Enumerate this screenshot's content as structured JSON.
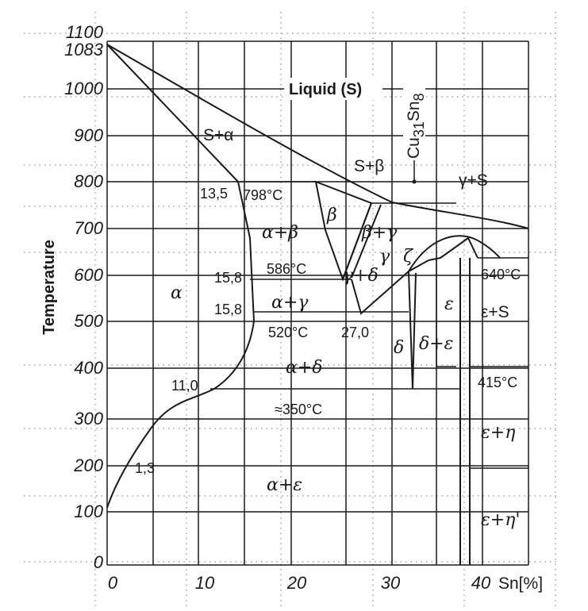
{
  "diagram": {
    "y_axis_label": "Temperature",
    "x_unit_label": "Sn[%]",
    "x_ticks": [
      "0",
      "10",
      "20",
      "30",
      "40"
    ],
    "y_ticks": [
      "1100",
      "1083",
      "1000",
      "900",
      "800",
      "700",
      "600",
      "500",
      "400",
      "300",
      "200",
      "100",
      "0"
    ],
    "liquid_label": "Liquid (S)",
    "compound_label": "Cu",
    "compound_sub1": "31",
    "compound_mid": "Sn",
    "compound_sub2": "8",
    "labels": {
      "s_alpha": "S+α",
      "s_beta": "S+β",
      "gamma_s": "γ+S",
      "v13_5": "13,5",
      "t798": "798°C",
      "beta": "β",
      "alpha_beta": "α+β",
      "beta_gamma": "β+γ",
      "gamma": "γ",
      "zeta": "ζ",
      "v15_8a": "15,8",
      "t586": "586°C",
      "gamma_delta": "γ+δ",
      "t640": "640°C",
      "alpha": "α",
      "alpha_gamma": "α+γ",
      "v15_8b": "15,8",
      "epsilon": "ε",
      "eps_s": "ε+S",
      "t520": "520°C",
      "v27_0": "27,0",
      "delta": "δ",
      "delta_eps": "δ+ε",
      "alpha_delta": "α+δ",
      "v11_0": "11,0",
      "t415": "415°C",
      "t350": "≈350°C",
      "eps_eta": "ε+η",
      "v1_3": "1,3",
      "alpha_eps": "α+ε",
      "eps_eta2": "ε+η'"
    }
  }
}
